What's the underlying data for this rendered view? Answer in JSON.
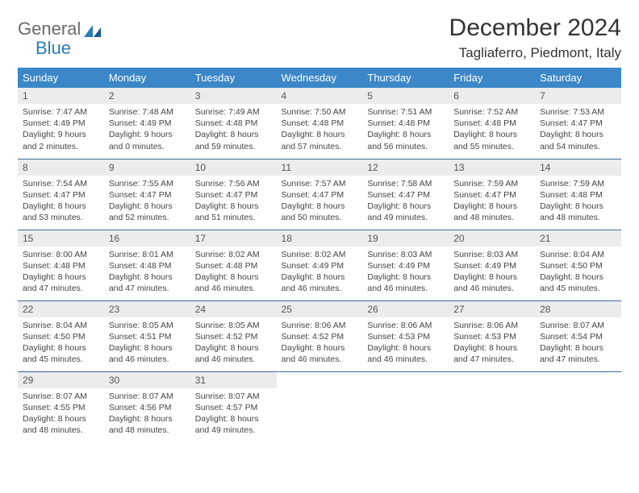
{
  "brand": {
    "part1": "General",
    "part2": "Blue"
  },
  "title": "December 2024",
  "location": "Tagliaferro, Piedmont, Italy",
  "colors": {
    "header_bg": "#3b87c8",
    "header_fg": "#ffffff",
    "daynum_bg": "#ececec",
    "row_border": "#3b6b9a",
    "brand_gray": "#6a6a6a",
    "brand_blue": "#2b7bbf"
  },
  "weekdays": [
    "Sunday",
    "Monday",
    "Tuesday",
    "Wednesday",
    "Thursday",
    "Friday",
    "Saturday"
  ],
  "days": [
    {
      "n": "1",
      "sunrise": "7:47 AM",
      "sunset": "4:49 PM",
      "dl": "9 hours and 2 minutes."
    },
    {
      "n": "2",
      "sunrise": "7:48 AM",
      "sunset": "4:49 PM",
      "dl": "9 hours and 0 minutes."
    },
    {
      "n": "3",
      "sunrise": "7:49 AM",
      "sunset": "4:48 PM",
      "dl": "8 hours and 59 minutes."
    },
    {
      "n": "4",
      "sunrise": "7:50 AM",
      "sunset": "4:48 PM",
      "dl": "8 hours and 57 minutes."
    },
    {
      "n": "5",
      "sunrise": "7:51 AM",
      "sunset": "4:48 PM",
      "dl": "8 hours and 56 minutes."
    },
    {
      "n": "6",
      "sunrise": "7:52 AM",
      "sunset": "4:48 PM",
      "dl": "8 hours and 55 minutes."
    },
    {
      "n": "7",
      "sunrise": "7:53 AM",
      "sunset": "4:47 PM",
      "dl": "8 hours and 54 minutes."
    },
    {
      "n": "8",
      "sunrise": "7:54 AM",
      "sunset": "4:47 PM",
      "dl": "8 hours and 53 minutes."
    },
    {
      "n": "9",
      "sunrise": "7:55 AM",
      "sunset": "4:47 PM",
      "dl": "8 hours and 52 minutes."
    },
    {
      "n": "10",
      "sunrise": "7:56 AM",
      "sunset": "4:47 PM",
      "dl": "8 hours and 51 minutes."
    },
    {
      "n": "11",
      "sunrise": "7:57 AM",
      "sunset": "4:47 PM",
      "dl": "8 hours and 50 minutes."
    },
    {
      "n": "12",
      "sunrise": "7:58 AM",
      "sunset": "4:47 PM",
      "dl": "8 hours and 49 minutes."
    },
    {
      "n": "13",
      "sunrise": "7:59 AM",
      "sunset": "4:47 PM",
      "dl": "8 hours and 48 minutes."
    },
    {
      "n": "14",
      "sunrise": "7:59 AM",
      "sunset": "4:48 PM",
      "dl": "8 hours and 48 minutes."
    },
    {
      "n": "15",
      "sunrise": "8:00 AM",
      "sunset": "4:48 PM",
      "dl": "8 hours and 47 minutes."
    },
    {
      "n": "16",
      "sunrise": "8:01 AM",
      "sunset": "4:48 PM",
      "dl": "8 hours and 47 minutes."
    },
    {
      "n": "17",
      "sunrise": "8:02 AM",
      "sunset": "4:48 PM",
      "dl": "8 hours and 46 minutes."
    },
    {
      "n": "18",
      "sunrise": "8:02 AM",
      "sunset": "4:49 PM",
      "dl": "8 hours and 46 minutes."
    },
    {
      "n": "19",
      "sunrise": "8:03 AM",
      "sunset": "4:49 PM",
      "dl": "8 hours and 46 minutes."
    },
    {
      "n": "20",
      "sunrise": "8:03 AM",
      "sunset": "4:49 PM",
      "dl": "8 hours and 46 minutes."
    },
    {
      "n": "21",
      "sunrise": "8:04 AM",
      "sunset": "4:50 PM",
      "dl": "8 hours and 45 minutes."
    },
    {
      "n": "22",
      "sunrise": "8:04 AM",
      "sunset": "4:50 PM",
      "dl": "8 hours and 45 minutes."
    },
    {
      "n": "23",
      "sunrise": "8:05 AM",
      "sunset": "4:51 PM",
      "dl": "8 hours and 46 minutes."
    },
    {
      "n": "24",
      "sunrise": "8:05 AM",
      "sunset": "4:52 PM",
      "dl": "8 hours and 46 minutes."
    },
    {
      "n": "25",
      "sunrise": "8:06 AM",
      "sunset": "4:52 PM",
      "dl": "8 hours and 46 minutes."
    },
    {
      "n": "26",
      "sunrise": "8:06 AM",
      "sunset": "4:53 PM",
      "dl": "8 hours and 46 minutes."
    },
    {
      "n": "27",
      "sunrise": "8:06 AM",
      "sunset": "4:53 PM",
      "dl": "8 hours and 47 minutes."
    },
    {
      "n": "28",
      "sunrise": "8:07 AM",
      "sunset": "4:54 PM",
      "dl": "8 hours and 47 minutes."
    },
    {
      "n": "29",
      "sunrise": "8:07 AM",
      "sunset": "4:55 PM",
      "dl": "8 hours and 48 minutes."
    },
    {
      "n": "30",
      "sunrise": "8:07 AM",
      "sunset": "4:56 PM",
      "dl": "8 hours and 48 minutes."
    },
    {
      "n": "31",
      "sunrise": "8:07 AM",
      "sunset": "4:57 PM",
      "dl": "8 hours and 49 minutes."
    }
  ],
  "labels": {
    "sunrise": "Sunrise: ",
    "sunset": "Sunset: ",
    "daylight": "Daylight: "
  }
}
